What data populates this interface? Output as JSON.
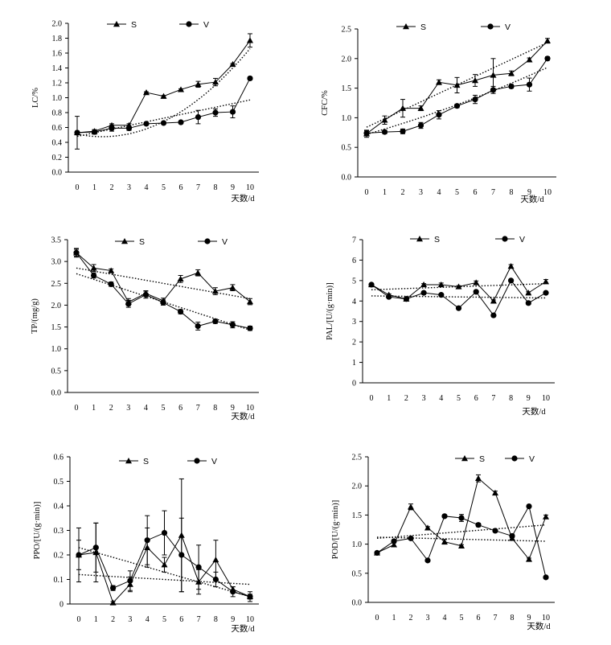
{
  "chart_data": [
    {
      "type": "line",
      "categories": [
        "0",
        "1",
        "2",
        "3",
        "4",
        "5",
        "6",
        "7",
        "8",
        "9",
        "10"
      ],
      "xlabel": "天数/d",
      "ylabel": "LC/%",
      "ylim": [
        0,
        2.0
      ],
      "yticks": [
        "0.0",
        "0.2",
        "0.4",
        "0.6",
        "0.8",
        "1.0",
        "1.2",
        "1.4",
        "1.6",
        "1.8",
        "2.0"
      ],
      "legend": [
        "S",
        "V"
      ],
      "series": [
        {
          "name": "S",
          "marker": "triangle",
          "values": [
            0.53,
            0.55,
            0.63,
            0.63,
            1.07,
            1.02,
            1.11,
            1.18,
            1.21,
            1.45,
            1.77
          ],
          "errors": [
            0.02,
            0.02,
            0.02,
            0.02,
            0.01,
            0.01,
            0.01,
            0.04,
            0.05,
            0.01,
            0.09
          ]
        },
        {
          "name": "V",
          "marker": "circle",
          "values": [
            0.53,
            0.54,
            0.59,
            0.59,
            0.65,
            0.66,
            0.67,
            0.74,
            0.8,
            0.81,
            1.26
          ],
          "errors": [
            0.22,
            0.03,
            0.04,
            0.03,
            0.01,
            0.01,
            0.01,
            0.09,
            0.05,
            0.08,
            0.02
          ]
        }
      ],
      "trend": [
        {
          "type": "poly",
          "from": 0.51,
          "mid": 0.68,
          "to": 1.66
        },
        {
          "type": "linear",
          "from": 0.48,
          "to": 0.97
        }
      ]
    },
    {
      "type": "line",
      "categories": [
        "0",
        "1",
        "2",
        "3",
        "4",
        "5",
        "6",
        "7",
        "8",
        "9",
        "10"
      ],
      "xlabel": "天数/d",
      "ylabel": "CFC/%",
      "ylim": [
        0,
        2.5
      ],
      "yticks": [
        "0.0",
        "0.5",
        "1.0",
        "1.5",
        "2.0",
        "2.5"
      ],
      "legend": [
        "S",
        "V"
      ],
      "series": [
        {
          "name": "S",
          "marker": "triangle",
          "values": [
            0.73,
            0.96,
            1.16,
            1.16,
            1.6,
            1.55,
            1.63,
            1.72,
            1.75,
            1.98,
            2.3
          ],
          "errors": [
            0.06,
            0.07,
            0.15,
            0.04,
            0.04,
            0.13,
            0.1,
            0.28,
            0.04,
            0.03,
            0.04
          ]
        },
        {
          "name": "V",
          "marker": "circle",
          "values": [
            0.74,
            0.76,
            0.77,
            0.87,
            1.05,
            1.2,
            1.31,
            1.47,
            1.53,
            1.56,
            2.0
          ],
          "errors": [
            0.04,
            0.03,
            0.04,
            0.05,
            0.07,
            0.03,
            0.07,
            0.06,
            0.03,
            0.11,
            0.03
          ]
        }
      ],
      "trend": [
        {
          "type": "linear",
          "from": 0.84,
          "to": 2.27
        },
        {
          "type": "poly",
          "from": 0.72,
          "mid": 1.22,
          "to": 1.85
        }
      ]
    },
    {
      "type": "line",
      "categories": [
        "0",
        "1",
        "2",
        "3",
        "4",
        "5",
        "6",
        "7",
        "8",
        "9",
        "10"
      ],
      "xlabel": "天数/d",
      "ylabel": "TP/(mg/g)",
      "ylim": [
        0,
        3.5
      ],
      "yticks": [
        "0.0",
        "0.5",
        "1.0",
        "1.5",
        "2.0",
        "2.5",
        "3.0",
        "3.5"
      ],
      "legend": [
        "S",
        "V"
      ],
      "series": [
        {
          "name": "S",
          "marker": "triangle",
          "values": [
            3.2,
            2.85,
            2.79,
            2.07,
            2.27,
            2.1,
            2.6,
            2.74,
            2.32,
            2.4,
            2.08
          ],
          "errors": [
            0.08,
            0.08,
            0.04,
            0.08,
            0.06,
            0.06,
            0.08,
            0.07,
            0.08,
            0.07,
            0.07
          ]
        },
        {
          "name": "V",
          "marker": "circle",
          "values": [
            3.2,
            2.68,
            2.48,
            2.03,
            2.24,
            2.06,
            1.85,
            1.52,
            1.63,
            1.55,
            1.47
          ],
          "errors": [
            0.1,
            0.06,
            0.05,
            0.08,
            0.08,
            0.06,
            0.05,
            0.09,
            0.05,
            0.07,
            0.05
          ]
        }
      ],
      "trend": [
        {
          "type": "linear",
          "from": 2.85,
          "to": 2.15
        },
        {
          "type": "linear",
          "from": 2.72,
          "to": 1.43
        }
      ]
    },
    {
      "type": "line",
      "categories": [
        "0",
        "1",
        "2",
        "3",
        "4",
        "5",
        "6",
        "7",
        "8",
        "9",
        "10"
      ],
      "xlabel": "天数/d",
      "ylabel": "PAL/[U/(g·min)]",
      "ylim": [
        0,
        7
      ],
      "yticks": [
        "0",
        "1",
        "2",
        "3",
        "4",
        "5",
        "6",
        "7"
      ],
      "legend": [
        "S",
        "V"
      ],
      "series": [
        {
          "name": "S",
          "marker": "triangle",
          "values": [
            4.8,
            4.3,
            4.1,
            4.8,
            4.8,
            4.7,
            4.9,
            4.0,
            5.7,
            4.4,
            4.95
          ],
          "errors": [
            0.05,
            0.05,
            0.05,
            0.05,
            0.08,
            0.05,
            0.08,
            0.05,
            0.08,
            0.05,
            0.1
          ]
        },
        {
          "name": "V",
          "marker": "circle",
          "values": [
            4.8,
            4.2,
            4.1,
            4.4,
            4.3,
            3.65,
            4.45,
            3.3,
            5.0,
            3.9,
            4.4
          ],
          "errors": [
            0.05,
            0.05,
            0.05,
            0.05,
            0.05,
            0.05,
            0.05,
            0.05,
            0.05,
            0.05,
            0.05
          ]
        }
      ],
      "trend": [
        {
          "type": "linear",
          "from": 4.55,
          "to": 4.85
        },
        {
          "type": "linear",
          "from": 4.25,
          "to": 4.15
        }
      ]
    },
    {
      "type": "line",
      "categories": [
        "0",
        "1",
        "2",
        "3",
        "4",
        "5",
        "6",
        "7",
        "8",
        "9",
        "10"
      ],
      "xlabel": "天数/d",
      "ylabel": "PPO/[U/(g·min)]",
      "ylim": [
        0,
        0.6
      ],
      "yticks": [
        "0",
        "0.1",
        "0.2",
        "0.3",
        "0.4",
        "0.5",
        "0.6"
      ],
      "legend": [
        "S",
        "V"
      ],
      "series": [
        {
          "name": "S",
          "marker": "triangle",
          "values": [
            0.2,
            0.21,
            0.005,
            0.08,
            0.23,
            0.16,
            0.28,
            0.09,
            0.18,
            0.06,
            0.03
          ],
          "errors": [
            0.11,
            0.12,
            0.005,
            0.03,
            0.08,
            0.03,
            0.23,
            0.05,
            0.08,
            0.01,
            0.01
          ]
        },
        {
          "name": "V",
          "marker": "circle",
          "values": [
            0.2,
            0.23,
            0.065,
            0.095,
            0.26,
            0.29,
            0.2,
            0.15,
            0.1,
            0.05,
            0.03
          ],
          "errors": [
            0.06,
            0.1,
            0.01,
            0.04,
            0.1,
            0.09,
            0.15,
            0.09,
            0.03,
            0.02,
            0.02
          ]
        }
      ],
      "trend": [
        {
          "type": "poly",
          "from": 0.23,
          "mid": 0.13,
          "to": 0.03
        },
        {
          "type": "linear",
          "from": 0.12,
          "to": 0.08
        }
      ]
    },
    {
      "type": "line",
      "categories": [
        "0",
        "1",
        "2",
        "3",
        "4",
        "5",
        "6",
        "7",
        "8",
        "9",
        "10"
      ],
      "xlabel": "天数/d",
      "ylabel": "POD/[U/(g·min)]",
      "ylim": [
        0,
        2.5
      ],
      "yticks": [
        "0.0",
        "0.5",
        "1.0",
        "1.5",
        "2.0",
        "2.5"
      ],
      "legend": [
        "S",
        "V"
      ],
      "series": [
        {
          "name": "S",
          "marker": "triangle",
          "values": [
            0.85,
            0.99,
            1.64,
            1.28,
            1.04,
            0.97,
            2.13,
            1.88,
            1.1,
            0.74,
            1.47
          ],
          "errors": [
            0.02,
            0.03,
            0.05,
            0.02,
            0.04,
            0.02,
            0.06,
            0.03,
            0.02,
            0.02,
            0.03
          ]
        },
        {
          "name": "V",
          "marker": "circle",
          "values": [
            0.85,
            1.05,
            1.1,
            0.72,
            1.48,
            1.45,
            1.33,
            1.23,
            1.14,
            1.65,
            0.43
          ],
          "errors": [
            0.02,
            0.02,
            0.02,
            0.02,
            0.02,
            0.06,
            0.03,
            0.02,
            0.03,
            0.02,
            0.02
          ]
        }
      ],
      "trend": [
        {
          "type": "linear",
          "from": 1.1,
          "to": 1.33
        },
        {
          "type": "linear",
          "from": 1.12,
          "to": 1.05
        }
      ]
    }
  ]
}
